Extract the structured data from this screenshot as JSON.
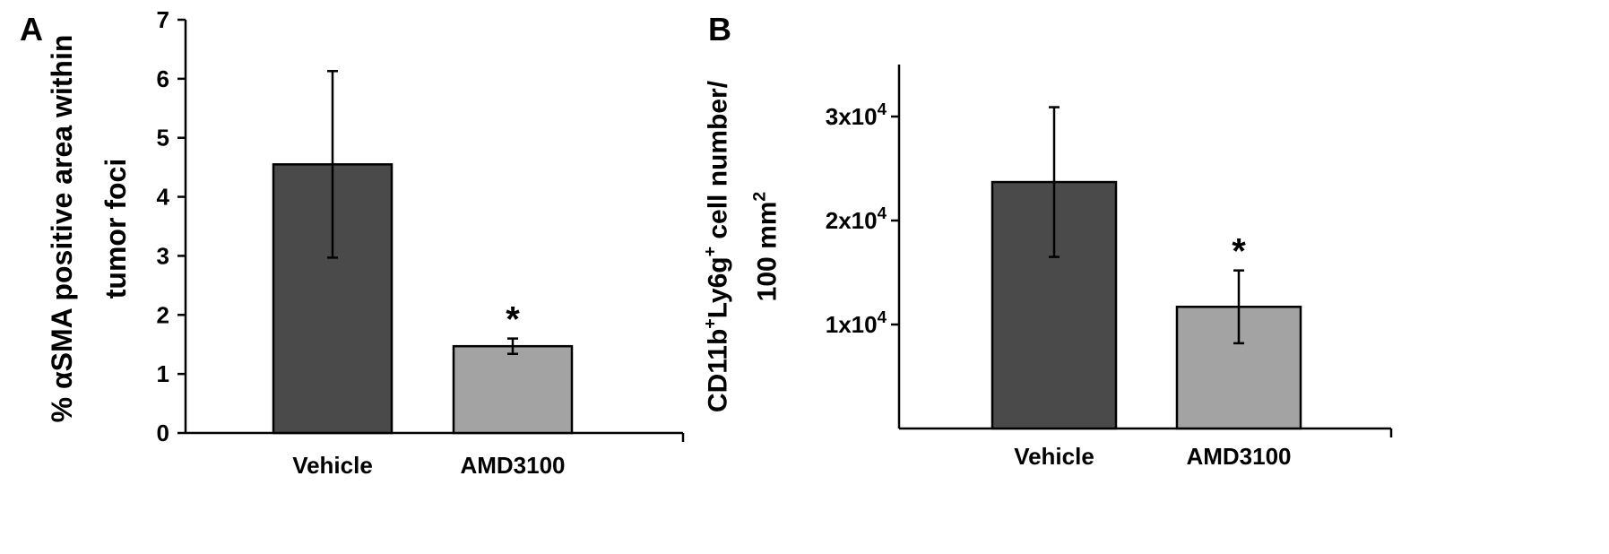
{
  "chart_data": [
    {
      "type": "bar",
      "panel_label": "A",
      "categories": [
        "Vehicle",
        "AMD3100"
      ],
      "values": [
        4.55,
        1.47
      ],
      "error": [
        1.58,
        0.13
      ],
      "significance": [
        "",
        "*"
      ],
      "bar_colors": [
        "#4a4a4a",
        "#a3a3a3"
      ],
      "ylabel_lines": [
        "% αSMA positive area within",
        "tumor  foci"
      ],
      "yticks": [
        {
          "value": 0,
          "label": "0"
        },
        {
          "value": 1,
          "label": "1"
        },
        {
          "value": 2,
          "label": "2"
        },
        {
          "value": 3,
          "label": "3"
        },
        {
          "value": 4,
          "label": "4"
        },
        {
          "value": 5,
          "label": "5"
        },
        {
          "value": 6,
          "label": "6"
        },
        {
          "value": 7,
          "label": "7"
        }
      ],
      "ylim": [
        0,
        7
      ],
      "grid": false,
      "legend": "none"
    },
    {
      "type": "bar",
      "panel_label": "B",
      "categories": [
        "Vehicle",
        "AMD3100"
      ],
      "values": [
        23700,
        11700
      ],
      "error": [
        7200,
        3500
      ],
      "significance": [
        "",
        "*"
      ],
      "bar_colors": [
        "#4a4a4a",
        "#a3a3a3"
      ],
      "ylabel_lines": [
        [
          {
            "t": "CD11b"
          },
          {
            "t": "+",
            "sup": true
          },
          {
            "t": "Ly6g"
          },
          {
            "t": "+",
            "sup": true
          },
          {
            "t": " cell number/"
          }
        ],
        [
          {
            "t": "100 mm"
          },
          {
            "t": "2",
            "sup": true
          }
        ]
      ],
      "yticks": [
        {
          "value": 10000,
          "base": "1x10",
          "exp": "4"
        },
        {
          "value": 20000,
          "base": "2x10",
          "exp": "4"
        },
        {
          "value": 30000,
          "base": "3x10",
          "exp": "4"
        }
      ],
      "ylim": [
        0,
        35000
      ],
      "grid": false,
      "legend": "none"
    }
  ]
}
